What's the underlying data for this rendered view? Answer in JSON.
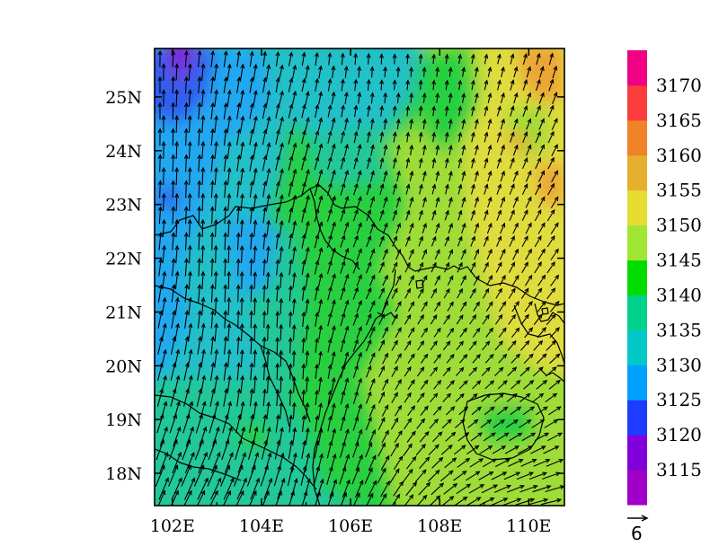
{
  "chart_data": {
    "type": "heatmap",
    "x_ticks": [
      "102E",
      "104E",
      "106E",
      "108E",
      "110E"
    ],
    "y_ticks": [
      "18N",
      "19N",
      "20N",
      "21N",
      "22N",
      "23N",
      "24N",
      "25N"
    ],
    "xlim": [
      101.6,
      110.8
    ],
    "ylim": [
      17.4,
      25.9
    ],
    "colorbar": {
      "labels": [
        "3115",
        "3120",
        "3125",
        "3130",
        "3135",
        "3140",
        "3145",
        "3150",
        "3155",
        "3160",
        "3165",
        "3170"
      ],
      "colors": [
        "#a000c8",
        "#8200dc",
        "#1e3cff",
        "#00a0ff",
        "#00c8c8",
        "#00d28c",
        "#00dc00",
        "#a0e632",
        "#e6dc32",
        "#e6af2d",
        "#f08228",
        "#fa3c3c",
        "#f00082"
      ]
    },
    "vector_reference": {
      "label": "6"
    },
    "field_colors": {
      "purple": "#7a28d8",
      "blue": "#2e5ef0",
      "skyblue": "#20a8f0",
      "cyan": "#20c0c8",
      "teal": "#20c898",
      "green": "#28d040",
      "lime": "#9edc38",
      "yellow": "#e0dc3c",
      "orange": "#eca434"
    }
  }
}
